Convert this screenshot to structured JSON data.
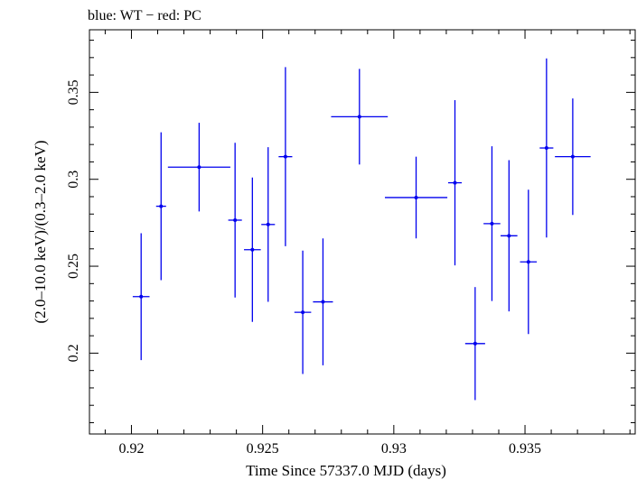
{
  "header": {
    "title": "blue: WT − red: PC"
  },
  "colors": {
    "series": "#0000ee",
    "axis": "#000000",
    "background": "#ffffff"
  },
  "chart_data": {
    "type": "scatter",
    "title": "blue: WT − red: PC",
    "xlabel": "Time Since 57337.0 MJD (days)",
    "ylabel": "(2.0–10.0 keV)/(0.3–2.0 keV)",
    "xlim": [
      0.9184,
      0.9392
    ],
    "ylim": [
      0.1535,
      0.386
    ],
    "xticks": [
      0.92,
      0.925,
      0.93,
      0.935
    ],
    "xtick_labels": [
      "0.92",
      "0.925",
      "0.93",
      "0.935"
    ],
    "yticks": [
      0.2,
      0.25,
      0.3,
      0.35
    ],
    "ytick_labels": [
      "0.2",
      "0.25",
      "0.3",
      "0.35"
    ],
    "grid": false,
    "series": [
      {
        "name": "WT",
        "color": "#0000ee",
        "points": [
          {
            "x": 0.92037,
            "xerr": 0.00032,
            "y": 0.2325,
            "yerr": 0.0365
          },
          {
            "x": 0.92113,
            "xerr": 0.00019,
            "y": 0.2845,
            "yerr": 0.0425
          },
          {
            "x": 0.92258,
            "xerr": 0.00119,
            "y": 0.307,
            "yerr": 0.0255
          },
          {
            "x": 0.92395,
            "xerr": 0.00026,
            "y": 0.2765,
            "yerr": 0.0445
          },
          {
            "x": 0.92461,
            "xerr": 0.00032,
            "y": 0.2595,
            "yerr": 0.0415
          },
          {
            "x": 0.92521,
            "xerr": 0.00026,
            "y": 0.274,
            "yerr": 0.0445
          },
          {
            "x": 0.92587,
            "xerr": 0.00026,
            "y": 0.313,
            "yerr": 0.0515
          },
          {
            "x": 0.92653,
            "xerr": 0.00032,
            "y": 0.2235,
            "yerr": 0.0355
          },
          {
            "x": 0.9273,
            "xerr": 0.00038,
            "y": 0.2295,
            "yerr": 0.0365
          },
          {
            "x": 0.92869,
            "xerr": 0.00108,
            "y": 0.336,
            "yerr": 0.0275
          },
          {
            "x": 0.93085,
            "xerr": 0.00119,
            "y": 0.2895,
            "yerr": 0.0235
          },
          {
            "x": 0.93233,
            "xerr": 0.00026,
            "y": 0.298,
            "yerr": 0.0475
          },
          {
            "x": 0.9331,
            "xerr": 0.00038,
            "y": 0.2055,
            "yerr": 0.0325
          },
          {
            "x": 0.93374,
            "xerr": 0.00032,
            "y": 0.2745,
            "yerr": 0.0445
          },
          {
            "x": 0.93439,
            "xerr": 0.00032,
            "y": 0.2675,
            "yerr": 0.0435
          },
          {
            "x": 0.93513,
            "xerr": 0.00032,
            "y": 0.2525,
            "yerr": 0.0415
          },
          {
            "x": 0.93582,
            "xerr": 0.00026,
            "y": 0.318,
            "yerr": 0.0515
          },
          {
            "x": 0.93682,
            "xerr": 0.00068,
            "y": 0.313,
            "yerr": 0.0335
          }
        ]
      }
    ]
  }
}
